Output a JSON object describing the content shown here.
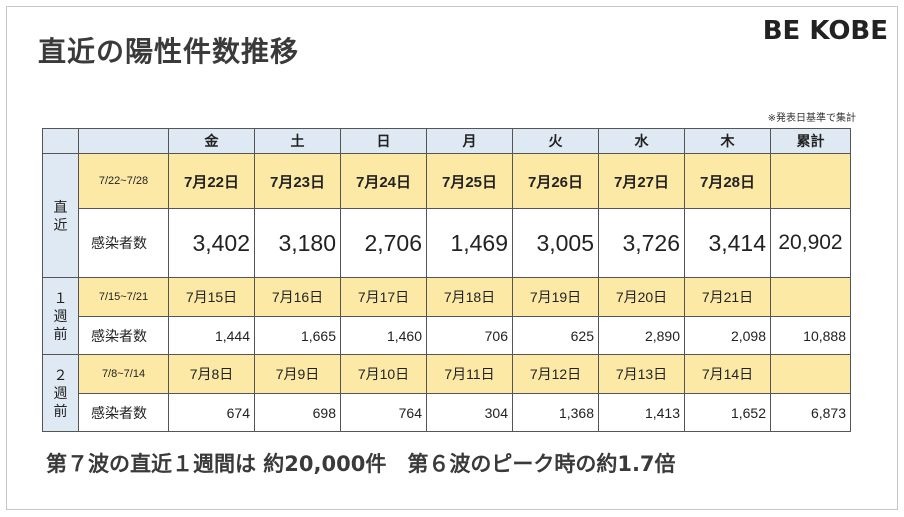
{
  "title": "直近の陽性件数推移",
  "brand": "BE KOBE",
  "note": "※発表日基準で集計",
  "header": {
    "days": [
      "金",
      "土",
      "日",
      "月",
      "火",
      "水",
      "木"
    ],
    "total": "累計"
  },
  "rows": [
    {
      "period_label": "直\n近",
      "range": "7/22~7/28",
      "dates": [
        "7月22日",
        "7月23日",
        "7月24日",
        "7月25日",
        "7月26日",
        "7月27日",
        "7月28日"
      ],
      "metric_label": "感染者数",
      "counts": [
        "3,402",
        "3,180",
        "2,706",
        "1,469",
        "3,005",
        "3,726",
        "3,414"
      ],
      "total": "20,902"
    },
    {
      "period_label": "１\n週\n前",
      "range": "7/15~7/21",
      "dates": [
        "7月15日",
        "7月16日",
        "7月17日",
        "7月18日",
        "7月19日",
        "7月20日",
        "7月21日"
      ],
      "metric_label": "感染者数",
      "counts": [
        "1,444",
        "1,665",
        "1,460",
        "706",
        "625",
        "2,890",
        "2,098"
      ],
      "total": "10,888"
    },
    {
      "period_label": "２\n週\n前",
      "range": "7/8~7/14",
      "dates": [
        "7月8日",
        "7月9日",
        "7月10日",
        "7月11日",
        "7月12日",
        "7月13日",
        "7月14日"
      ],
      "metric_label": "感染者数",
      "counts": [
        "674",
        "698",
        "764",
        "304",
        "1,368",
        "1,413",
        "1,652"
      ],
      "total": "6,873"
    }
  ],
  "summary": "第７波の直近１週間は 約20,000件　第６波のピーク時の約1.7倍"
}
